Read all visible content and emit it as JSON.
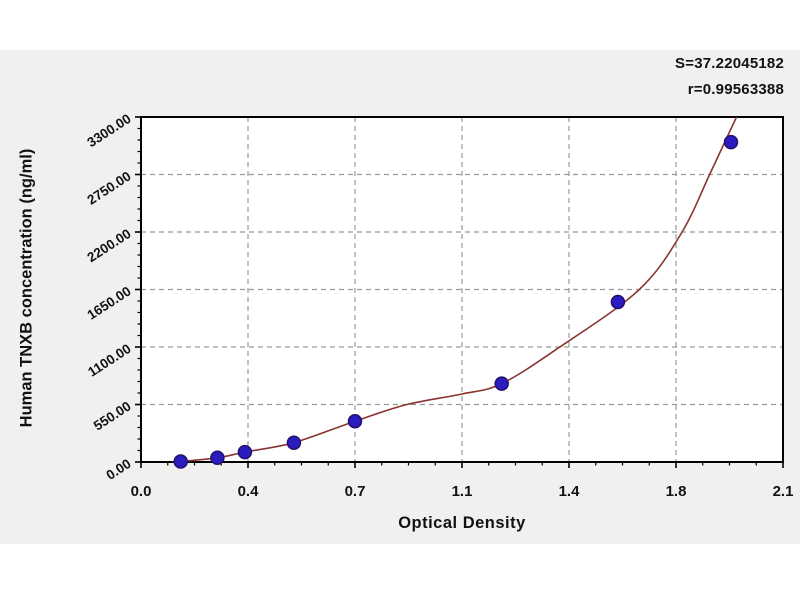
{
  "stats": {
    "s_line": "S=37.22045182",
    "r_line": "r=0.99563388"
  },
  "chart_data": {
    "type": "scatter",
    "title": "",
    "xlabel": "Optical Density",
    "ylabel": "Human TNXB concentration (ng/ml)",
    "xlim": [
      0,
      2.1
    ],
    "ylim": [
      0,
      3300
    ],
    "x_major_ticks": [
      0,
      0.35,
      0.7,
      1.05,
      1.4,
      1.75,
      2.1
    ],
    "x_tick_labels": [
      "0.0",
      "0.4",
      "0.7",
      "1.1",
      "1.4",
      "1.8",
      "2.1"
    ],
    "x_minor_step": 0.0875,
    "y_major_ticks": [
      0,
      550,
      1100,
      1650,
      2200,
      2750,
      3300
    ],
    "y_tick_labels": [
      "0.00",
      "550.00",
      "1100.00",
      "1650.00",
      "2200.00",
      "2750.00",
      "3300.00"
    ],
    "y_minor_step": 110,
    "grid": "dashed gray lines at major ticks on both axes",
    "legend": "none",
    "points": [
      [
        0.13,
        5
      ],
      [
        0.25,
        40
      ],
      [
        0.34,
        95
      ],
      [
        0.5,
        185
      ],
      [
        0.7,
        390
      ],
      [
        1.18,
        750
      ],
      [
        1.56,
        1530
      ],
      [
        1.93,
        3060
      ]
    ],
    "fit_curve_samples": [
      [
        0.1,
        -5
      ],
      [
        0.13,
        5
      ],
      [
        0.25,
        40
      ],
      [
        0.34,
        95
      ],
      [
        0.5,
        185
      ],
      [
        0.7,
        390
      ],
      [
        0.87,
        550
      ],
      [
        1.05,
        650
      ],
      [
        1.18,
        750
      ],
      [
        1.37,
        1100
      ],
      [
        1.63,
        1650
      ],
      [
        1.77,
        2200
      ],
      [
        1.86,
        2750
      ],
      [
        1.94,
        3250
      ],
      [
        1.99,
        3560
      ]
    ],
    "fit_stats": {
      "S": "37.22045182",
      "r": "0.99563388"
    },
    "colors": {
      "panel_bg": "#f0f0ee",
      "plot_bg": "#ffffff",
      "axis": "#000000",
      "grid": "#999999",
      "curve": "#8a3430",
      "point_fill": "#2a1cbe",
      "point_stroke": "#23106e",
      "text": "#121212"
    }
  }
}
